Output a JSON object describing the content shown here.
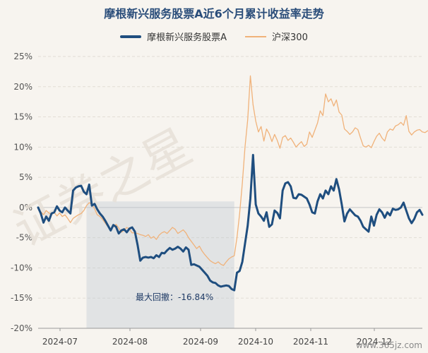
{
  "chart_data": {
    "type": "line",
    "title": "摩根新兴服务股票A近6个月累计收益率走势",
    "ylim": [
      -20,
      25
    ],
    "yticks": [
      "25%",
      "20%",
      "15%",
      "10%",
      "5%",
      "0%",
      "-5%",
      "-10%",
      "-15%",
      "-20%"
    ],
    "ytick_values": [
      25,
      20,
      15,
      10,
      5,
      0,
      -5,
      -10,
      -15,
      -20
    ],
    "xticks": [
      "2024-07",
      "2024-08",
      "2024-09",
      "2024-10",
      "2024-11",
      "2024-12"
    ],
    "grid": true,
    "legend_position": "top",
    "series": [
      {
        "name": "摩根新兴服务股票A",
        "color": "#1f4e7f",
        "values": [
          0.0,
          -1.0,
          -2.5,
          -1.5,
          -2.2,
          -1.0,
          -0.8,
          0.2,
          -0.5,
          -0.8,
          0.0,
          -0.5,
          -1.0,
          2.8,
          3.3,
          3.5,
          3.6,
          2.6,
          2.2,
          3.8,
          0.3,
          0.6,
          -0.3,
          -1.0,
          -1.5,
          -2.2,
          -3.0,
          -3.8,
          -2.9,
          -3.2,
          -4.3,
          -3.8,
          -3.6,
          -4.1,
          -3.5,
          -3.3,
          -4.0,
          -6.2,
          -8.8,
          -8.3,
          -8.2,
          -8.3,
          -8.2,
          -8.4,
          -7.9,
          -8.2,
          -7.5,
          -7.6,
          -7.1,
          -6.7,
          -7.0,
          -6.8,
          -6.5,
          -6.8,
          -7.3,
          -6.6,
          -7.0,
          -9.5,
          -9.4,
          -9.6,
          -9.8,
          -10.3,
          -10.8,
          -11.3,
          -12.1,
          -12.4,
          -12.5,
          -12.9,
          -13.1,
          -13.0,
          -12.9,
          -13.0,
          -13.5,
          -13.7,
          -10.8,
          -10.5,
          -9.0,
          -6.0,
          -3.0,
          1.5,
          8.7,
          0.5,
          -1.0,
          -1.5,
          -2.2,
          -0.8,
          -3.2,
          -2.8,
          -0.5,
          -0.9,
          -1.8,
          2.8,
          4.0,
          4.2,
          3.5,
          1.6,
          1.5,
          2.2,
          2.1,
          1.8,
          1.5,
          0.5,
          -0.8,
          -1.0,
          1.0,
          2.2,
          1.5,
          2.8,
          2.2,
          3.5,
          2.8,
          4.7,
          3.0,
          0.5,
          -2.3,
          -1.0,
          -0.3,
          -0.8,
          -1.3,
          -1.5,
          -2.2,
          -3.2,
          -3.6,
          -4.0,
          -1.5,
          -3.0,
          -1.2,
          -0.3,
          -0.8,
          -1.7,
          -0.8,
          -1.3,
          -0.2,
          -0.4,
          -0.3,
          0.0,
          0.8,
          -0.5,
          -1.8,
          -2.6,
          -1.9,
          -0.8,
          -0.4,
          -1.2
        ]
      },
      {
        "name": "沪深300",
        "color": "#f0b27a",
        "values": [
          0.0,
          -0.7,
          -1.2,
          -0.5,
          -0.9,
          -1.2,
          -0.8,
          -1.4,
          -0.9,
          -1.5,
          -1.2,
          -1.8,
          -2.5,
          -1.8,
          -1.5,
          -1.2,
          -1.0,
          -0.5,
          0.3,
          0.8,
          0.5,
          -0.2,
          -1.2,
          -1.5,
          -2.0,
          -2.6,
          -3.2,
          -3.5,
          -3.1,
          -2.8,
          -3.4,
          -4.1,
          -3.8,
          -3.3,
          -3.6,
          -4.2,
          -4.2,
          -4.3,
          -4.5,
          -4.6,
          -4.8,
          -4.5,
          -5.1,
          -4.8,
          -5.3,
          -4.6,
          -4.2,
          -4.0,
          -4.3,
          -3.8,
          -3.3,
          -3.6,
          -4.3,
          -4.0,
          -3.7,
          -4.2,
          -5.0,
          -5.6,
          -6.2,
          -6.8,
          -6.4,
          -7.2,
          -7.8,
          -8.3,
          -8.8,
          -9.1,
          -9.3,
          -9.0,
          -9.4,
          -9.6,
          -9.0,
          -8.5,
          -8.2,
          -8.0,
          -5.0,
          -1.0,
          4.0,
          10.0,
          14.5,
          21.8,
          17.0,
          14.3,
          12.5,
          13.4,
          11.0,
          13.0,
          12.2,
          10.9,
          12.1,
          11.1,
          9.8,
          11.6,
          11.9,
          11.1,
          11.5,
          10.8,
          10.0,
          10.5,
          10.9,
          10.1,
          10.5,
          12.5,
          11.6,
          12.8,
          14.0,
          16.0,
          15.2,
          18.8,
          17.5,
          18.0,
          16.8,
          17.8,
          15.8,
          15.3,
          13.0,
          12.6,
          12.1,
          12.5,
          13.2,
          12.9,
          11.5,
          10.2,
          10.0,
          10.3,
          9.9,
          10.9,
          11.8,
          12.3,
          11.5,
          11.0,
          12.5,
          13.0,
          12.8,
          13.5,
          13.7,
          14.1,
          13.6,
          15.2,
          12.6,
          12.0,
          12.5,
          12.8,
          12.9,
          12.5,
          12.4,
          12.7
        ]
      }
    ],
    "drawdown": {
      "label": "最大回撤：-16.84%",
      "start_index": 18,
      "end_index": 73
    }
  },
  "watermark": {
    "text": "www.365jz.com"
  }
}
